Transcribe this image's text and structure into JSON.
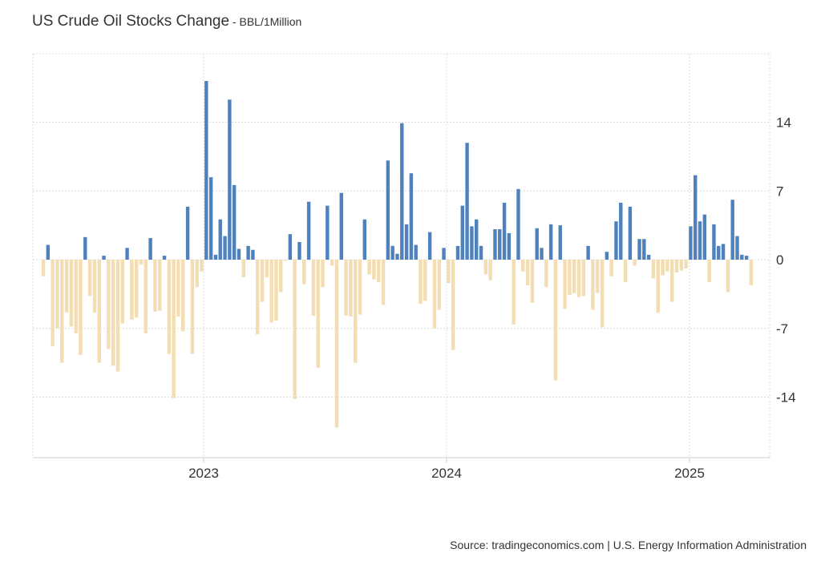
{
  "header": {
    "title": "US Crude Oil Stocks Change",
    "unit": " - BBL/1Million"
  },
  "footer": {
    "source": "Source: tradingeconomics.com | U.S. Energy Information Administration"
  },
  "chart_data": {
    "type": "bar",
    "title": "US Crude Oil Stocks Change",
    "ylabel": "BBL/1Million",
    "xlabel": "",
    "ylim": [
      -20.5,
      20.5
    ],
    "yticks": [
      14,
      7,
      0,
      -7,
      -14
    ],
    "grid": true,
    "x_start": 2022.34,
    "x_step": 0.01917,
    "xticks": [
      {
        "label": "2023",
        "value": 2023.0
      },
      {
        "label": "2024",
        "value": 2024.0
      },
      {
        "label": "2025",
        "value": 2025.0
      }
    ],
    "positive_color": "#4f81bd",
    "negative_color": "#f3ddb2",
    "values": [
      -1.7,
      1.5,
      -8.8,
      -7.0,
      -10.5,
      -5.4,
      -6.8,
      -7.5,
      -9.7,
      2.3,
      -3.7,
      -5.4,
      -10.5,
      0.4,
      -9.1,
      -10.8,
      -11.4,
      -6.5,
      1.2,
      -6.1,
      -5.9,
      -0.5,
      -7.5,
      2.2,
      -5.3,
      -5.2,
      0.4,
      -9.6,
      -14.1,
      -5.8,
      -7.3,
      5.4,
      -9.6,
      -2.8,
      -1.2,
      18.2,
      8.4,
      0.5,
      4.1,
      2.4,
      16.3,
      7.6,
      1.1,
      -1.8,
      1.4,
      1.0,
      -7.6,
      -4.3,
      -1.8,
      -6.4,
      -6.2,
      -3.3,
      -0.1,
      2.6,
      -14.2,
      1.8,
      -2.5,
      5.9,
      -5.7,
      -11.0,
      -2.8,
      5.5,
      -0.6,
      -17.1,
      6.8,
      -5.7,
      -5.8,
      -10.5,
      -5.6,
      4.1,
      -1.5,
      -2.0,
      -2.3,
      -4.6,
      10.1,
      1.4,
      0.6,
      13.9,
      3.6,
      8.8,
      1.5,
      -4.5,
      -4.2,
      2.8,
      -7.0,
      -5.1,
      1.2,
      -2.4,
      -9.2,
      1.4,
      5.5,
      11.9,
      3.4,
      4.1,
      1.4,
      -1.5,
      -2.1,
      3.1,
      3.1,
      5.8,
      2.7,
      -6.6,
      7.2,
      -1.2,
      -2.6,
      -4.4,
      3.2,
      1.2,
      -2.8,
      3.6,
      -12.3,
      3.5,
      -5.0,
      -3.6,
      -3.4,
      -3.8,
      -3.7,
      1.4,
      -5.1,
      -3.4,
      -6.9,
      0.8,
      -1.7,
      3.9,
      5.8,
      -2.3,
      5.4,
      -0.6,
      2.1,
      2.1,
      0.5,
      -1.9,
      -5.4,
      -1.6,
      -1.2,
      -4.3,
      -1.3,
      -1.1,
      -0.9,
      3.4,
      8.6,
      3.9,
      4.6,
      -2.3,
      3.6,
      1.4,
      1.6,
      -3.3,
      6.1,
      2.4,
      0.5,
      0.4,
      -2.6
    ]
  }
}
